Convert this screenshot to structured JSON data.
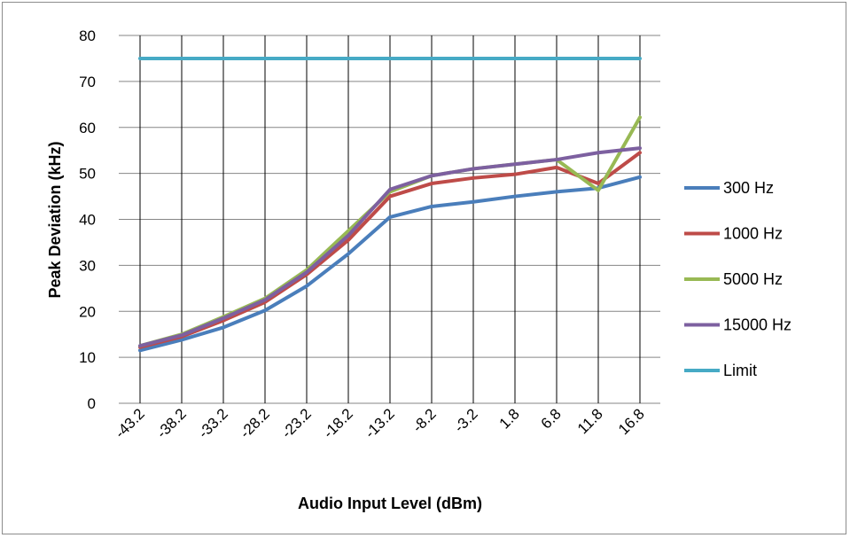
{
  "chart_data": {
    "type": "line",
    "title": "",
    "xlabel": "Audio Input Level (dBm)",
    "ylabel": "Peak Deviation (kHz)",
    "ylim": [
      0,
      80
    ],
    "yticks": [
      0,
      10,
      20,
      30,
      40,
      50,
      60,
      70,
      80
    ],
    "categories": [
      "-43.2",
      "-38.2",
      "-33.2",
      "-28.2",
      "-23.2",
      "-18.2",
      "-13.2",
      "-8.2",
      "-3.2",
      "1.8",
      "6.8",
      "11.8",
      "16.8"
    ],
    "grid": "horizontal and vertical",
    "legend_position": "right",
    "series": [
      {
        "name": "300 Hz",
        "color": "#4a7ebb",
        "values": [
          11.5,
          13.8,
          16.5,
          20.2,
          25.5,
          32.5,
          40.5,
          42.8,
          43.8,
          45.0,
          46.0,
          46.8,
          49.2
        ]
      },
      {
        "name": "1000 Hz",
        "color": "#be4b48",
        "values": [
          12.2,
          14.5,
          18.0,
          22.0,
          28.0,
          35.5,
          45.0,
          47.8,
          49.0,
          49.8,
          51.3,
          47.8,
          54.5
        ]
      },
      {
        "name": "5000 Hz",
        "color": "#98b954",
        "values": [
          12.5,
          15.0,
          18.8,
          22.8,
          29.0,
          37.5,
          46.0,
          49.5,
          51.0,
          52.0,
          53.0,
          46.3,
          62.2
        ]
      },
      {
        "name": "15000 Hz",
        "color": "#7d60a0",
        "values": [
          12.5,
          14.8,
          18.5,
          22.5,
          28.5,
          36.5,
          46.5,
          49.5,
          51.0,
          52.0,
          53.0,
          54.5,
          55.5
        ]
      },
      {
        "name": "Limit",
        "color": "#46aac5",
        "values": [
          75,
          75,
          75,
          75,
          75,
          75,
          75,
          75,
          75,
          75,
          75,
          75,
          75
        ]
      }
    ]
  }
}
